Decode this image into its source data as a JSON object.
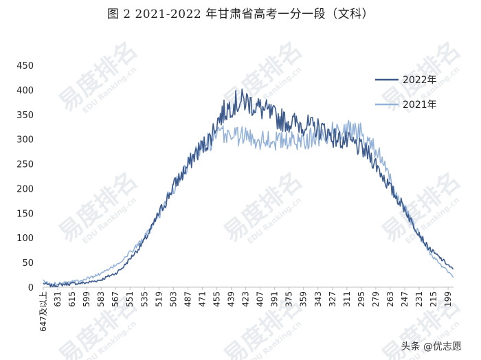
{
  "header": {
    "title": "图 2 2021-2022 年甘肃省高考一分一段（文科）"
  },
  "footer": {
    "credit": "头条 @优志愿"
  },
  "watermark": {
    "brand": "易度排名",
    "sub": "EDU Ranking.cn"
  },
  "colors": {
    "series_2022": "#3c5a8c",
    "series_2021": "#93b1d8",
    "axis": "#bfbfbf",
    "text": "#222222"
  },
  "chart_data": {
    "type": "line",
    "title": "图 2 2021-2022 年甘肃省高考一分一段（文科）",
    "xlabel": "",
    "ylabel": "",
    "ylim": [
      0,
      450
    ],
    "yticks": [
      0,
      50,
      100,
      150,
      200,
      250,
      300,
      350,
      400,
      450
    ],
    "x_start_label": "647及以上",
    "xticks": [
      "647及以上",
      "631",
      "615",
      "599",
      "583",
      "567",
      "551",
      "535",
      "519",
      "503",
      "487",
      "471",
      "455",
      "439",
      "423",
      "407",
      "391",
      "375",
      "359",
      "343",
      "327",
      "311",
      "295",
      "279",
      "263",
      "247",
      "231",
      "215",
      "199"
    ],
    "x_first": 647,
    "x_last": 193,
    "grid": false,
    "legend_position": "top-right",
    "series": [
      {
        "name": "2022年",
        "color": "#3c5a8c",
        "points": [
          [
            647,
            8
          ],
          [
            639,
            3
          ],
          [
            631,
            4
          ],
          [
            623,
            6
          ],
          [
            615,
            7
          ],
          [
            607,
            8
          ],
          [
            599,
            9
          ],
          [
            591,
            12
          ],
          [
            583,
            15
          ],
          [
            575,
            22
          ],
          [
            567,
            28
          ],
          [
            559,
            40
          ],
          [
            551,
            58
          ],
          [
            543,
            75
          ],
          [
            535,
            95
          ],
          [
            527,
            120
          ],
          [
            519,
            150
          ],
          [
            511,
            175
          ],
          [
            503,
            205
          ],
          [
            495,
            225
          ],
          [
            487,
            245
          ],
          [
            479,
            270
          ],
          [
            471,
            285
          ],
          [
            463,
            300
          ],
          [
            455,
            335
          ],
          [
            447,
            355
          ],
          [
            439,
            370
          ],
          [
            431,
            375
          ],
          [
            423,
            378
          ],
          [
            415,
            370
          ],
          [
            407,
            362
          ],
          [
            399,
            355
          ],
          [
            391,
            345
          ],
          [
            383,
            340
          ],
          [
            375,
            335
          ],
          [
            367,
            332
          ],
          [
            359,
            330
          ],
          [
            351,
            325
          ],
          [
            343,
            322
          ],
          [
            335,
            318
          ],
          [
            327,
            305
          ],
          [
            319,
            300
          ],
          [
            311,
            295
          ],
          [
            303,
            290
          ],
          [
            295,
            280
          ],
          [
            287,
            270
          ],
          [
            279,
            250
          ],
          [
            271,
            225
          ],
          [
            263,
            200
          ],
          [
            255,
            180
          ],
          [
            247,
            160
          ],
          [
            239,
            130
          ],
          [
            231,
            110
          ],
          [
            223,
            85
          ],
          [
            215,
            70
          ],
          [
            207,
            58
          ],
          [
            199,
            45
          ],
          [
            193,
            35
          ]
        ]
      },
      {
        "name": "2021年",
        "color": "#93b1d8",
        "points": [
          [
            647,
            12
          ],
          [
            639,
            6
          ],
          [
            631,
            8
          ],
          [
            623,
            10
          ],
          [
            615,
            12
          ],
          [
            607,
            14
          ],
          [
            599,
            17
          ],
          [
            591,
            22
          ],
          [
            583,
            28
          ],
          [
            575,
            35
          ],
          [
            567,
            45
          ],
          [
            559,
            55
          ],
          [
            551,
            70
          ],
          [
            543,
            85
          ],
          [
            535,
            100
          ],
          [
            527,
            120
          ],
          [
            519,
            145
          ],
          [
            511,
            175
          ],
          [
            503,
            200
          ],
          [
            495,
            225
          ],
          [
            487,
            250
          ],
          [
            479,
            270
          ],
          [
            471,
            285
          ],
          [
            463,
            295
          ],
          [
            455,
            305
          ],
          [
            447,
            310
          ],
          [
            439,
            310
          ],
          [
            431,
            308
          ],
          [
            423,
            305
          ],
          [
            415,
            302
          ],
          [
            407,
            300
          ],
          [
            399,
            300
          ],
          [
            391,
            298
          ],
          [
            383,
            296
          ],
          [
            375,
            295
          ],
          [
            367,
            297
          ],
          [
            359,
            300
          ],
          [
            351,
            302
          ],
          [
            343,
            305
          ],
          [
            335,
            310
          ],
          [
            327,
            315
          ],
          [
            319,
            318
          ],
          [
            311,
            320
          ],
          [
            303,
            318
          ],
          [
            295,
            312
          ],
          [
            287,
            300
          ],
          [
            279,
            280
          ],
          [
            271,
            250
          ],
          [
            263,
            215
          ],
          [
            255,
            185
          ],
          [
            247,
            160
          ],
          [
            239,
            130
          ],
          [
            231,
            105
          ],
          [
            223,
            80
          ],
          [
            215,
            60
          ],
          [
            207,
            45
          ],
          [
            199,
            32
          ],
          [
            193,
            22
          ]
        ]
      }
    ]
  }
}
